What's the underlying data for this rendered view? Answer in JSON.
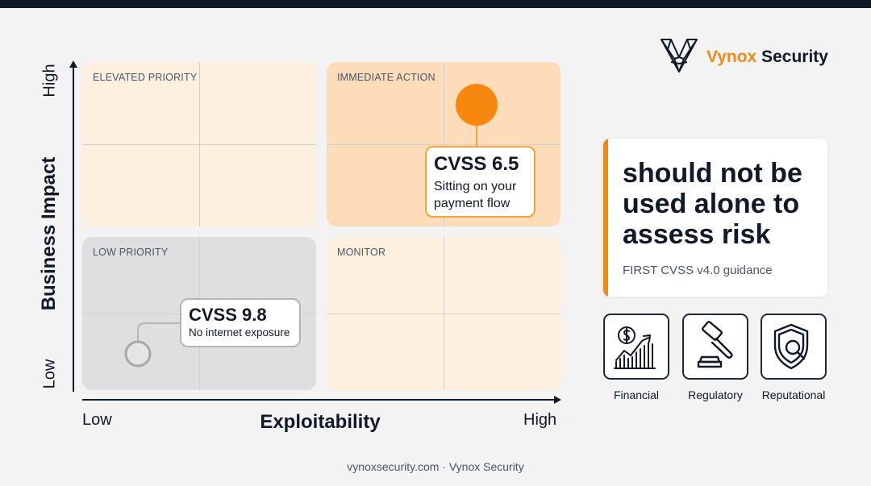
{
  "brand": {
    "name_part1": "Vynox",
    "name_part2": "Security",
    "logo_icon": "v-mesh-logo-icon",
    "accent_color": "#f28a1a"
  },
  "matrix": {
    "y_axis_label": "Business Impact",
    "x_axis_label": "Exploitability",
    "y_tick_high": "High",
    "y_tick_low": "Low",
    "x_tick_low": "Low",
    "x_tick_high": "High",
    "quadrants": {
      "top_left": "ELEVATED PRIORITY",
      "top_right": "IMMEDIATE ACTION",
      "bottom_left": "LOW PRIORITY",
      "bottom_right": "MONITOR"
    },
    "quadrant_colors": {
      "top_left": "#fdf0de",
      "top_right": "#fcdcb9",
      "bottom_left": "#dfdfe1",
      "bottom_right": "#fdf0de"
    },
    "callouts": [
      {
        "score": "CVSS 6.5",
        "desc_line1": "Sitting on your",
        "desc_line2": "payment flow",
        "marker_color": "#f7870f"
      },
      {
        "score": "CVSS 9.8",
        "desc": "No internet exposure",
        "marker_color": "#b5b5b5"
      }
    ]
  },
  "quote": {
    "text": "should not be used alone to assess risk",
    "source": "FIRST CVSS v4.0 guidance"
  },
  "risk_types": [
    {
      "label": "Financial",
      "icon": "financial-growth-icon"
    },
    {
      "label": "Regulatory",
      "icon": "gavel-icon"
    },
    {
      "label": "Reputational",
      "icon": "shield-search-icon"
    }
  ],
  "footer": {
    "text": "vynoxsecurity.com · Vynox Security"
  }
}
